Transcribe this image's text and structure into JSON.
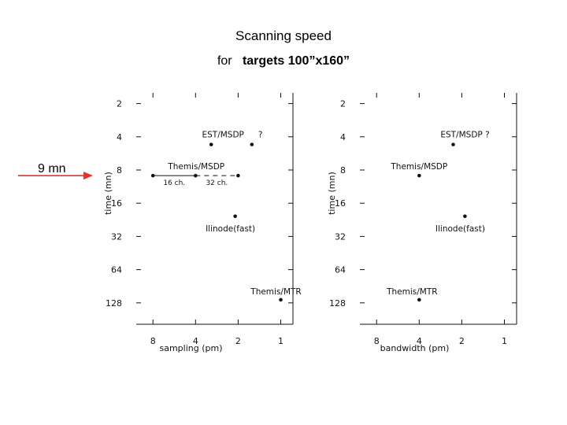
{
  "header": {
    "title": "Scanning speed",
    "subtitle_prefix": "for",
    "subtitle_target": "targets 100”x160”"
  },
  "colors": {
    "accent_red": "#e8312a",
    "ink": "#111111"
  },
  "annotation": {
    "label": "9 mn",
    "y_value": 9
  },
  "chart_data": [
    {
      "type": "scatter",
      "xlabel": "sampling  (pm)",
      "ylabel": "time  (mn)",
      "x_scale": "log",
      "y_scale": "log",
      "x_reversed": true,
      "xlim": [
        10.5,
        0.82
      ],
      "ylim": [
        1.6,
        200
      ],
      "x_ticks": [
        8,
        4,
        2,
        1
      ],
      "y_ticks": [
        2,
        4,
        8,
        16,
        32,
        64,
        128
      ],
      "grid": false,
      "points": [
        {
          "label": "EST/MSDP",
          "x": 3.1,
          "y": 4.7
        },
        {
          "label": "?",
          "x": 1.6,
          "y": 4.7
        },
        {
          "label": "Themis/MSDP",
          "x": 8,
          "y": 9
        },
        {
          "label": "",
          "x": 4,
          "y": 9
        },
        {
          "label": "",
          "x": 2,
          "y": 9
        },
        {
          "label": "Ilinode(fast)",
          "x": 2.1,
          "y": 21
        },
        {
          "label": "Themis/MTR",
          "x": 1,
          "y": 120
        }
      ],
      "segments": [
        {
          "label": "16 ch.",
          "x_from": 8,
          "x_to": 4,
          "y": 9,
          "style": "solid"
        },
        {
          "label": "32 ch.",
          "x_from": 4,
          "x_to": 2,
          "y": 9,
          "style": "dashed"
        }
      ]
    },
    {
      "type": "scatter",
      "xlabel": "bandwidth  (pm)",
      "ylabel": "time  (mn)",
      "x_scale": "log",
      "y_scale": "log",
      "x_reversed": true,
      "xlim": [
        10.5,
        0.82
      ],
      "ylim": [
        1.6,
        200
      ],
      "x_ticks": [
        8,
        4,
        2,
        1
      ],
      "y_ticks": [
        2,
        4,
        8,
        16,
        32,
        64,
        128
      ],
      "grid": false,
      "points": [
        {
          "label": "EST/MSDP  ?",
          "x": 2.3,
          "y": 4.7
        },
        {
          "label": "Themis/MSDP",
          "x": 4,
          "y": 9
        },
        {
          "label": "Ilinode(fast)",
          "x": 1.9,
          "y": 21
        },
        {
          "label": "Themis/MTR",
          "x": 4,
          "y": 120
        }
      ],
      "segments": []
    }
  ]
}
